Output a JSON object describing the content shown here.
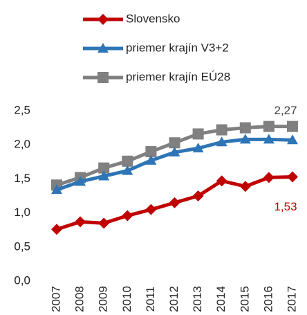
{
  "chart_data": {
    "type": "line",
    "categories": [
      "2007",
      "2008",
      "2009",
      "2010",
      "2011",
      "2012",
      "2013",
      "2014",
      "2015",
      "2016",
      "2017"
    ],
    "series": [
      {
        "name": "Slovensko",
        "color": "#c00000",
        "marker": "diamond",
        "values": [
          0.76,
          0.87,
          0.85,
          0.96,
          1.05,
          1.15,
          1.25,
          1.47,
          1.39,
          1.52,
          1.53
        ],
        "value_labels": [
          null,
          null,
          null,
          null,
          null,
          null,
          null,
          null,
          null,
          null,
          "1,53"
        ]
      },
      {
        "name": "priemer krajín V3+2",
        "color": "#2e75b6",
        "marker": "triangle",
        "values": [
          1.34,
          1.46,
          1.54,
          1.62,
          1.77,
          1.89,
          1.95,
          2.04,
          2.08,
          2.08,
          2.07
        ]
      },
      {
        "name": "priemer krajín EÚ28",
        "color": "#808080",
        "marker": "square",
        "values": [
          1.41,
          1.52,
          1.66,
          1.76,
          1.9,
          2.03,
          2.16,
          2.22,
          2.25,
          2.27,
          2.27
        ],
        "value_labels": [
          null,
          null,
          null,
          null,
          null,
          null,
          null,
          null,
          null,
          null,
          "2,27"
        ]
      }
    ],
    "ylim": [
      0,
      2.5
    ],
    "yticks": [
      {
        "value": 0,
        "label": "0,0"
      },
      {
        "value": 0.5,
        "label": "0,5"
      },
      {
        "value": 1,
        "label": "1,0"
      },
      {
        "value": 1.5,
        "label": "1,5"
      },
      {
        "value": 2,
        "label": "2,0"
      },
      {
        "value": 2.5,
        "label": "2,5"
      }
    ],
    "grid": false,
    "legend": "top"
  }
}
